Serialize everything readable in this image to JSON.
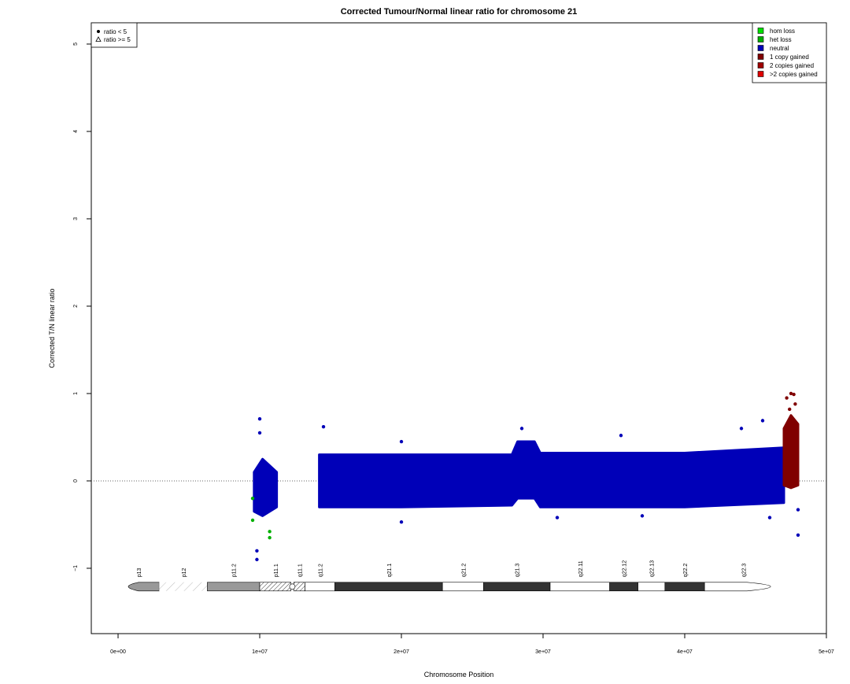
{
  "chart_data": {
    "type": "scatter",
    "title": "Corrected Tumour/Normal linear ratio for chromosome  21",
    "x_label": "Chromosome Position",
    "y_label": "Corrected T/N linear ratio",
    "xlim": [
      -1890000,
      50000000
    ],
    "ylim": [
      -1.748,
      5.243
    ],
    "xticks": [
      {
        "value": 0,
        "label": "0e+00"
      },
      {
        "value": 10000000,
        "label": "1e+07"
      },
      {
        "value": 20000000,
        "label": "2e+07"
      },
      {
        "value": 30000000,
        "label": "3e+07"
      },
      {
        "value": 40000000,
        "label": "4e+07"
      },
      {
        "value": 50000000,
        "label": "5e+07"
      }
    ],
    "yticks": [
      {
        "value": -1,
        "label": "−1"
      },
      0,
      1,
      2,
      3,
      4,
      5
    ],
    "reference_line": 0,
    "series": [
      {
        "name": "neutral",
        "color": "#0000b8",
        "x": [
          10000000,
          10000000,
          9800000,
          9800000,
          14500000,
          20000000,
          28500000,
          35500000,
          44000000,
          45500000,
          48000000,
          48000000,
          20000000,
          31000000,
          37000000,
          46000000
        ],
        "values": [
          0.71,
          0.55,
          -0.9,
          -0.8,
          0.62,
          0.45,
          0.6,
          0.52,
          0.6,
          0.69,
          -0.62,
          -0.33,
          -0.47,
          -0.42,
          -0.4,
          -0.42
        ],
        "envelope": {
          "x": [
            9600000,
            10200000,
            11200000,
            null,
            14200000,
            20000000,
            27800000,
            28200000,
            29400000,
            29800000,
            40000000,
            47000000
          ],
          "low": [
            -0.35,
            -0.4,
            -0.3,
            null,
            -0.3,
            -0.3,
            -0.28,
            -0.2,
            -0.2,
            -0.3,
            -0.3,
            -0.25
          ],
          "high": [
            0.1,
            0.25,
            0.1,
            null,
            0.3,
            0.3,
            0.3,
            0.45,
            0.45,
            0.32,
            0.32,
            0.38
          ]
        }
      },
      {
        "name": "het loss",
        "color": "#00b000",
        "x": [
          10700000,
          10700000,
          9500000,
          9500000
        ],
        "values": [
          -0.65,
          -0.58,
          -0.45,
          -0.2
        ]
      },
      {
        "name": "1 copy gained",
        "color": "#800000",
        "x": [
          47200000,
          47500000,
          47700000,
          47800000,
          47400000
        ],
        "values": [
          0.95,
          1.0,
          0.99,
          0.88,
          0.82
        ],
        "envelope": {
          "x": [
            47000000,
            47500000,
            48000000
          ],
          "low": [
            -0.05,
            -0.08,
            -0.05
          ],
          "high": [
            0.6,
            0.75,
            0.65
          ]
        }
      }
    ],
    "legend": [
      {
        "name": "hom loss",
        "color": "#00e000"
      },
      {
        "name": "het loss",
        "color": "#00b000"
      },
      {
        "name": "neutral",
        "color": "#0000b8"
      },
      {
        "name": "1 copy gained",
        "color": "#800000"
      },
      {
        "name": "2 copies gained",
        "color": "#a00000"
      },
      {
        "name": ">2 copies gained",
        "color": "#e00000"
      }
    ],
    "legend_position": "top-right",
    "shape_legend": [
      "ratio < 5",
      "ratio >= 5"
    ],
    "ideogram": {
      "y": -1.21,
      "bands": [
        {
          "name": "p13",
          "start": 0,
          "end": 2900000,
          "fill": "#999999"
        },
        {
          "name": "p12",
          "start": 2900000,
          "end": 6300000,
          "fill": "stalk"
        },
        {
          "name": "p11.2",
          "start": 6300000,
          "end": 10000000,
          "fill": "#999999"
        },
        {
          "name": "p11.1",
          "start": 10000000,
          "end": 12200000,
          "fill": "hatch"
        },
        {
          "name": "q11.1",
          "start": 12400000,
          "end": 13200000,
          "fill": "hatch"
        },
        {
          "name": "q11.2",
          "start": 13200000,
          "end": 15300000,
          "fill": "#ffffff"
        },
        {
          "name": "q21.1",
          "start": 15300000,
          "end": 22900000,
          "fill": "#333333"
        },
        {
          "name": "q21.2",
          "start": 22900000,
          "end": 25800000,
          "fill": "#ffffff"
        },
        {
          "name": "q21.3",
          "start": 25800000,
          "end": 30500000,
          "fill": "#333333"
        },
        {
          "name": "q22.11",
          "start": 30500000,
          "end": 34700000,
          "fill": "#ffffff"
        },
        {
          "name": "q22.12",
          "start": 34700000,
          "end": 36700000,
          "fill": "#333333"
        },
        {
          "name": "q22.13",
          "start": 36700000,
          "end": 38600000,
          "fill": "#ffffff"
        },
        {
          "name": "q22.2",
          "start": 38600000,
          "end": 41400000,
          "fill": "#333333"
        },
        {
          "name": "q22.3",
          "start": 41400000,
          "end": 46900000,
          "fill": "#ffffff"
        }
      ]
    }
  }
}
